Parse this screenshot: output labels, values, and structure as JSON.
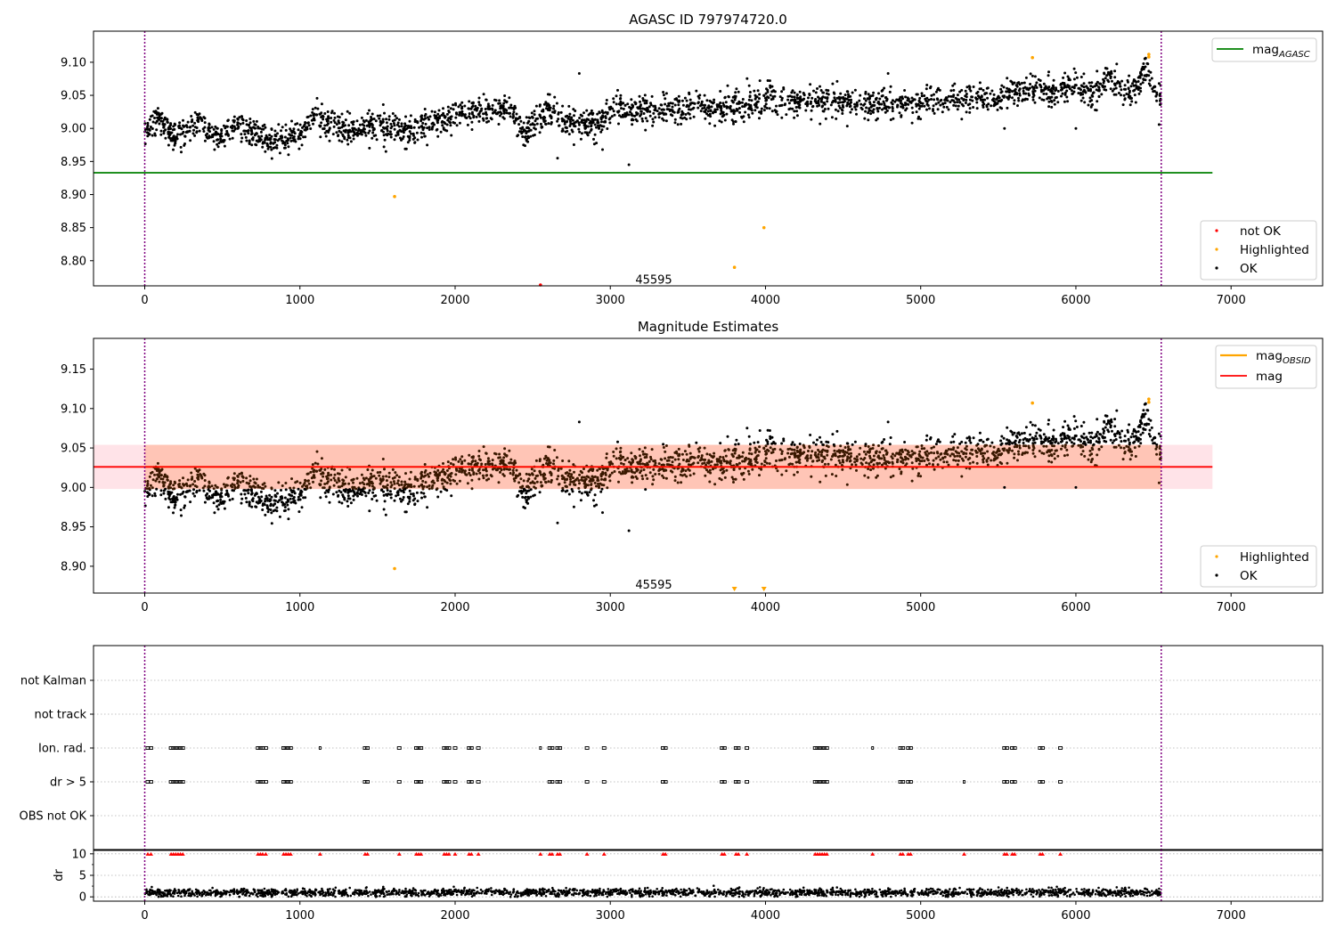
{
  "figure": {
    "top_title": "AGASC ID 797974720.0",
    "middle_title": "Magnitude Estimates",
    "obsid_label": "45595"
  },
  "colors": {
    "ok": "#000000",
    "highlighted": "#ffa500",
    "not_ok": "#ff0000",
    "mag_agasc": "#008000",
    "mag_obsid": "#ffa500",
    "mag": "#ff0000",
    "band_outer": "#ffc0cb",
    "band_inner": "#ffa07a",
    "vline": "#800080",
    "grid": "#b0b0b0"
  },
  "chart_data": [
    {
      "type": "scatter",
      "title": "AGASC ID 797974720.0",
      "xlim": [
        -330,
        7590
      ],
      "ylim": [
        8.762,
        9.147
      ],
      "xticks": [
        0,
        1000,
        2000,
        3000,
        4000,
        5000,
        6000,
        7000
      ],
      "yticks": [
        8.8,
        8.85,
        8.9,
        8.95,
        9.0,
        9.05,
        9.1
      ],
      "lines": [
        {
          "name": "mag_AGASC",
          "legend_main": "mag",
          "legend_sub": "AGASC",
          "y": 8.933,
          "x": [
            -330,
            6880
          ],
          "color": "#008000"
        }
      ],
      "obsid_markers": [
        0,
        6550
      ],
      "obsid_text": {
        "label": "45595",
        "x": 3280,
        "y": 8.771
      },
      "ok_trend": [
        [
          0,
          9.0
        ],
        [
          100,
          9.015
        ],
        [
          200,
          8.985
        ],
        [
          350,
          9.01
        ],
        [
          450,
          8.985
        ],
        [
          600,
          9.005
        ],
        [
          800,
          8.98
        ],
        [
          1000,
          8.99
        ],
        [
          1100,
          9.02
        ],
        [
          1300,
          8.995
        ],
        [
          1500,
          9.005
        ],
        [
          1700,
          8.995
        ],
        [
          1900,
          9.01
        ],
        [
          2100,
          9.025
        ],
        [
          2350,
          9.03
        ],
        [
          2450,
          8.995
        ],
        [
          2600,
          9.03
        ],
        [
          2700,
          9.01
        ],
        [
          2900,
          9.005
        ],
        [
          3000,
          9.03
        ],
        [
          3200,
          9.025
        ],
        [
          3500,
          9.03
        ],
        [
          3800,
          9.03
        ],
        [
          4000,
          9.045
        ],
        [
          4300,
          9.04
        ],
        [
          4600,
          9.04
        ],
        [
          4900,
          9.035
        ],
        [
          5200,
          9.045
        ],
        [
          5500,
          9.045
        ],
        [
          5700,
          9.06
        ],
        [
          5900,
          9.055
        ],
        [
          6000,
          9.065
        ],
        [
          6100,
          9.045
        ],
        [
          6200,
          9.08
        ],
        [
          6350,
          9.05
        ],
        [
          6450,
          9.085
        ],
        [
          6550,
          9.04
        ]
      ],
      "ok_outliers": [
        [
          2660,
          8.955
        ],
        [
          3120,
          8.945
        ],
        [
          2950,
          8.968
        ],
        [
          5540,
          9.0
        ],
        [
          6000,
          9.0
        ],
        [
          2800,
          9.083
        ],
        [
          4790,
          9.083
        ]
      ],
      "highlighted": [
        [
          1610,
          8.897
        ],
        [
          3800,
          8.79
        ],
        [
          3990,
          8.85
        ],
        [
          5720,
          9.107
        ],
        [
          6470,
          9.108
        ],
        [
          6470,
          9.112
        ]
      ],
      "not_ok": [
        [
          2550,
          8.762
        ]
      ],
      "legend": [
        {
          "label": "not OK",
          "color": "#ff0000"
        },
        {
          "label": "Highlighted",
          "color": "#ffa500"
        },
        {
          "label": "OK",
          "color": "#000000"
        }
      ]
    },
    {
      "type": "scatter",
      "title": "Magnitude Estimates",
      "xlim": [
        -330,
        7590
      ],
      "ylim": [
        8.866,
        9.189
      ],
      "xticks": [
        0,
        1000,
        2000,
        3000,
        4000,
        5000,
        6000,
        7000
      ],
      "yticks": [
        8.9,
        8.95,
        9.0,
        9.05,
        9.1,
        9.15
      ],
      "lines": [
        {
          "name": "mag_OBSID",
          "legend_main": "mag",
          "legend_sub": "OBSID",
          "y": 9.026,
          "x": [
            0,
            6550
          ],
          "color": "#ffa500"
        },
        {
          "name": "mag",
          "legend_main": "mag",
          "legend_sub": "",
          "y": 9.026,
          "x": [
            -330,
            6880
          ],
          "color": "#ff0000"
        }
      ],
      "bands": [
        {
          "y0": 8.998,
          "y1": 9.054,
          "x": [
            -330,
            6880
          ],
          "color": "#ffc0cb"
        },
        {
          "y0": 8.998,
          "y1": 9.054,
          "x": [
            0,
            6550
          ],
          "color": "#ffa07a"
        }
      ],
      "obsid_markers": [
        0,
        6550
      ],
      "obsid_text": {
        "label": "45595",
        "x": 3280,
        "y": 8.876
      },
      "highlighted": [
        [
          1610,
          8.897
        ],
        [
          5720,
          9.107
        ],
        [
          6470,
          9.108
        ],
        [
          6470,
          9.112
        ]
      ],
      "offscale_markers": [
        3800,
        3990
      ],
      "legend": [
        {
          "label": "mag",
          "sub": "OBSID",
          "color": "#ffa500",
          "kind": "line"
        },
        {
          "label": "mag",
          "sub": "",
          "color": "#ff0000",
          "kind": "line"
        }
      ],
      "legend2": [
        {
          "label": "Highlighted",
          "color": "#ffa500"
        },
        {
          "label": "OK",
          "color": "#000000"
        }
      ]
    },
    {
      "type": "scatter",
      "title": "",
      "xlim": [
        -330,
        7590
      ],
      "categories": [
        "not Kalman",
        "not track",
        "Ion. rad.",
        "dr > 5",
        "OBS not OK"
      ],
      "flag_x": [
        20,
        40,
        170,
        185,
        200,
        215,
        230,
        245,
        730,
        745,
        760,
        780,
        895,
        910,
        925,
        940,
        1130,
        1420,
        1435,
        1640,
        1750,
        1765,
        1780,
        1930,
        1945,
        1960,
        2000,
        2090,
        2105,
        2150,
        2550,
        2610,
        2625,
        2660,
        2675,
        2850,
        2960,
        3340,
        3355,
        3720,
        3735,
        3810,
        3825,
        3880,
        4320,
        4335,
        4350,
        4365,
        4380,
        4395,
        4690,
        4870,
        4885,
        4920,
        4935,
        5280,
        5540,
        5555,
        5590,
        5605,
        5770,
        5785,
        5900
      ],
      "ionrad_only": [
        1130,
        2550,
        4690
      ],
      "dr_only": [
        5280
      ]
    },
    {
      "type": "scatter",
      "title": "",
      "ylabel": "dr",
      "xlim": [
        -330,
        7590
      ],
      "ylim": [
        -1,
        11
      ],
      "yticks": [
        0,
        5,
        10
      ],
      "xticks": [
        0,
        1000,
        2000,
        3000,
        4000,
        5000,
        6000,
        7000
      ],
      "dr_level": 10
    }
  ]
}
